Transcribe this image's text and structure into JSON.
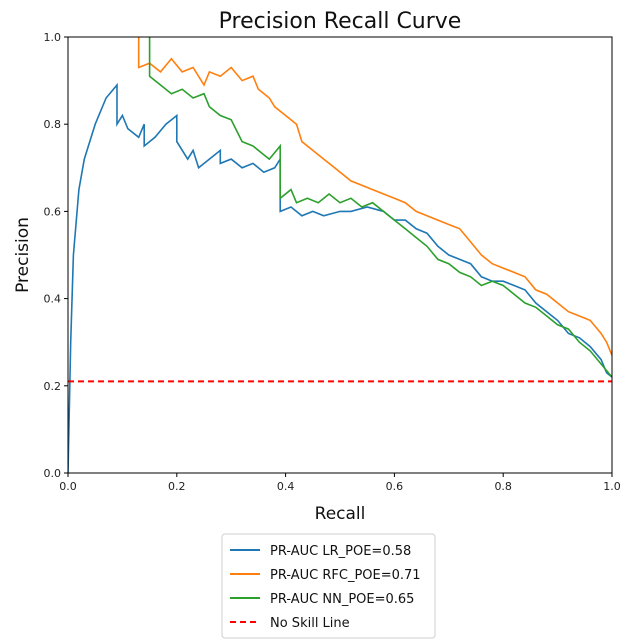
{
  "chart_data": {
    "type": "line",
    "title": "Precision Recall Curve",
    "xlabel": "Recall",
    "ylabel": "Precision",
    "xlim": [
      0,
      1
    ],
    "ylim": [
      0,
      1
    ],
    "x_ticks": [
      "0.0",
      "0.2",
      "0.4",
      "0.6",
      "0.8",
      "1.0"
    ],
    "y_ticks": [
      "0.0",
      "0.2",
      "0.4",
      "0.6",
      "0.8",
      "1.0"
    ],
    "grid": false,
    "legend_position": "below",
    "series": [
      {
        "name": "PR-AUC LR_POE=0.58",
        "color": "#1f77b4",
        "style": "solid",
        "points": [
          [
            0.0,
            0.0
          ],
          [
            0.005,
            0.3
          ],
          [
            0.01,
            0.5
          ],
          [
            0.02,
            0.65
          ],
          [
            0.03,
            0.72
          ],
          [
            0.05,
            0.8
          ],
          [
            0.07,
            0.86
          ],
          [
            0.09,
            0.89
          ],
          [
            0.09,
            0.8
          ],
          [
            0.1,
            0.82
          ],
          [
            0.11,
            0.79
          ],
          [
            0.13,
            0.77
          ],
          [
            0.14,
            0.8
          ],
          [
            0.14,
            0.75
          ],
          [
            0.16,
            0.77
          ],
          [
            0.18,
            0.8
          ],
          [
            0.2,
            0.82
          ],
          [
            0.2,
            0.76
          ],
          [
            0.22,
            0.72
          ],
          [
            0.23,
            0.74
          ],
          [
            0.24,
            0.7
          ],
          [
            0.26,
            0.72
          ],
          [
            0.28,
            0.74
          ],
          [
            0.28,
            0.71
          ],
          [
            0.3,
            0.72
          ],
          [
            0.32,
            0.7
          ],
          [
            0.34,
            0.71
          ],
          [
            0.36,
            0.69
          ],
          [
            0.38,
            0.7
          ],
          [
            0.39,
            0.72
          ],
          [
            0.39,
            0.6
          ],
          [
            0.41,
            0.61
          ],
          [
            0.43,
            0.59
          ],
          [
            0.45,
            0.6
          ],
          [
            0.47,
            0.59
          ],
          [
            0.5,
            0.6
          ],
          [
            0.52,
            0.6
          ],
          [
            0.55,
            0.61
          ],
          [
            0.58,
            0.6
          ],
          [
            0.6,
            0.58
          ],
          [
            0.62,
            0.58
          ],
          [
            0.64,
            0.56
          ],
          [
            0.66,
            0.55
          ],
          [
            0.68,
            0.52
          ],
          [
            0.7,
            0.5
          ],
          [
            0.72,
            0.49
          ],
          [
            0.74,
            0.48
          ],
          [
            0.76,
            0.45
          ],
          [
            0.78,
            0.44
          ],
          [
            0.8,
            0.44
          ],
          [
            0.82,
            0.43
          ],
          [
            0.84,
            0.42
          ],
          [
            0.86,
            0.39
          ],
          [
            0.88,
            0.37
          ],
          [
            0.9,
            0.35
          ],
          [
            0.92,
            0.32
          ],
          [
            0.94,
            0.31
          ],
          [
            0.96,
            0.29
          ],
          [
            0.98,
            0.26
          ],
          [
            0.99,
            0.23
          ],
          [
            1.0,
            0.22
          ]
        ]
      },
      {
        "name": "PR-AUC RFC_POE=0.71",
        "color": "#ff7f0e",
        "style": "solid",
        "points": [
          [
            0.13,
            1.0
          ],
          [
            0.13,
            0.93
          ],
          [
            0.15,
            0.94
          ],
          [
            0.17,
            0.92
          ],
          [
            0.19,
            0.95
          ],
          [
            0.21,
            0.92
          ],
          [
            0.23,
            0.93
          ],
          [
            0.25,
            0.89
          ],
          [
            0.26,
            0.92
          ],
          [
            0.28,
            0.91
          ],
          [
            0.3,
            0.93
          ],
          [
            0.32,
            0.9
          ],
          [
            0.34,
            0.91
          ],
          [
            0.35,
            0.88
          ],
          [
            0.37,
            0.86
          ],
          [
            0.38,
            0.84
          ],
          [
            0.4,
            0.82
          ],
          [
            0.42,
            0.8
          ],
          [
            0.43,
            0.76
          ],
          [
            0.45,
            0.74
          ],
          [
            0.47,
            0.72
          ],
          [
            0.49,
            0.7
          ],
          [
            0.52,
            0.67
          ],
          [
            0.54,
            0.66
          ],
          [
            0.56,
            0.65
          ],
          [
            0.58,
            0.64
          ],
          [
            0.6,
            0.63
          ],
          [
            0.62,
            0.62
          ],
          [
            0.64,
            0.6
          ],
          [
            0.66,
            0.59
          ],
          [
            0.68,
            0.58
          ],
          [
            0.7,
            0.57
          ],
          [
            0.72,
            0.56
          ],
          [
            0.74,
            0.53
          ],
          [
            0.76,
            0.5
          ],
          [
            0.78,
            0.48
          ],
          [
            0.8,
            0.47
          ],
          [
            0.82,
            0.46
          ],
          [
            0.84,
            0.45
          ],
          [
            0.86,
            0.42
          ],
          [
            0.88,
            0.41
          ],
          [
            0.9,
            0.39
          ],
          [
            0.92,
            0.37
          ],
          [
            0.94,
            0.36
          ],
          [
            0.96,
            0.35
          ],
          [
            0.98,
            0.32
          ],
          [
            0.99,
            0.3
          ],
          [
            1.0,
            0.27
          ]
        ]
      },
      {
        "name": "PR-AUC NN_POE=0.65",
        "color": "#2ca02c",
        "style": "solid",
        "points": [
          [
            0.15,
            1.0
          ],
          [
            0.15,
            0.91
          ],
          [
            0.17,
            0.89
          ],
          [
            0.19,
            0.87
          ],
          [
            0.21,
            0.88
          ],
          [
            0.23,
            0.86
          ],
          [
            0.25,
            0.87
          ],
          [
            0.26,
            0.84
          ],
          [
            0.28,
            0.82
          ],
          [
            0.3,
            0.81
          ],
          [
            0.32,
            0.76
          ],
          [
            0.34,
            0.75
          ],
          [
            0.36,
            0.73
          ],
          [
            0.37,
            0.72
          ],
          [
            0.39,
            0.75
          ],
          [
            0.39,
            0.63
          ],
          [
            0.41,
            0.65
          ],
          [
            0.42,
            0.62
          ],
          [
            0.44,
            0.63
          ],
          [
            0.46,
            0.62
          ],
          [
            0.48,
            0.64
          ],
          [
            0.5,
            0.62
          ],
          [
            0.52,
            0.63
          ],
          [
            0.54,
            0.61
          ],
          [
            0.56,
            0.62
          ],
          [
            0.58,
            0.6
          ],
          [
            0.6,
            0.58
          ],
          [
            0.62,
            0.56
          ],
          [
            0.64,
            0.54
          ],
          [
            0.66,
            0.52
          ],
          [
            0.68,
            0.49
          ],
          [
            0.7,
            0.48
          ],
          [
            0.72,
            0.46
          ],
          [
            0.74,
            0.45
          ],
          [
            0.76,
            0.43
          ],
          [
            0.78,
            0.44
          ],
          [
            0.8,
            0.43
          ],
          [
            0.82,
            0.41
          ],
          [
            0.84,
            0.39
          ],
          [
            0.86,
            0.38
          ],
          [
            0.88,
            0.36
          ],
          [
            0.9,
            0.34
          ],
          [
            0.92,
            0.33
          ],
          [
            0.94,
            0.3
          ],
          [
            0.96,
            0.28
          ],
          [
            0.98,
            0.25
          ],
          [
            1.0,
            0.22
          ]
        ]
      },
      {
        "name": "No Skill Line",
        "color": "#ff0000",
        "style": "dashed",
        "points": [
          [
            0.0,
            0.21
          ],
          [
            1.0,
            0.21
          ]
        ]
      }
    ]
  }
}
